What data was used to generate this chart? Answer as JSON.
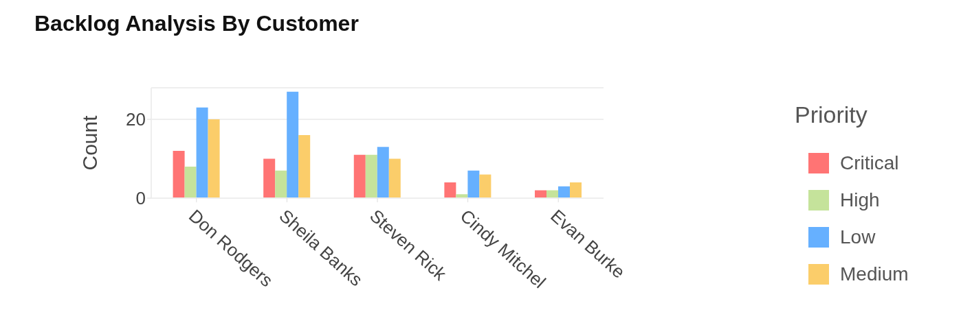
{
  "chart_data": {
    "type": "bar",
    "title": "Backlog Analysis By Customer",
    "ylabel": "Count",
    "legend_title": "Priority",
    "categories": [
      "Don Rodgers",
      "Sheila Banks",
      "Steven Rick",
      "Cindy Mitchel",
      "Evan Burke"
    ],
    "series": [
      {
        "name": "Critical",
        "color": "#ff7474",
        "values": [
          12,
          10,
          11,
          4,
          2
        ]
      },
      {
        "name": "High",
        "color": "#c5e39b",
        "values": [
          8,
          7,
          11,
          1,
          2
        ]
      },
      {
        "name": "Low",
        "color": "#66b0ff",
        "values": [
          23,
          27,
          13,
          7,
          3
        ]
      },
      {
        "name": "Medium",
        "color": "#fbcd6a",
        "values": [
          20,
          16,
          10,
          6,
          4
        ]
      }
    ],
    "ylim": [
      0,
      28
    ],
    "yticks": [
      0,
      20
    ],
    "grid": "y",
    "legend": "right"
  }
}
